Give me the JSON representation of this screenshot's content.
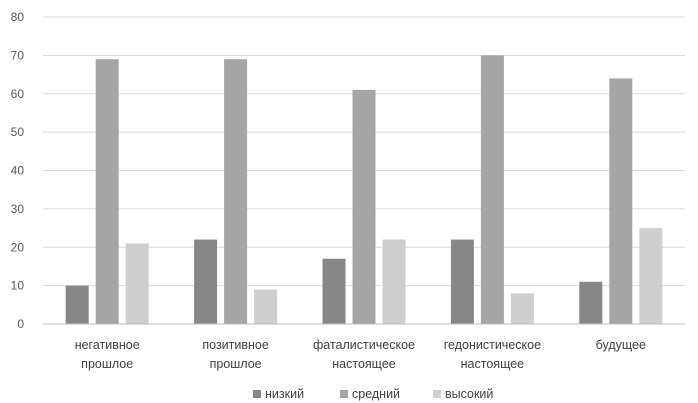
{
  "chart_data": {
    "type": "bar",
    "categories": [
      [
        "негативное",
        "прошлое"
      ],
      [
        "позитивное",
        "прошлое"
      ],
      [
        "фаталистическое",
        "настоящее"
      ],
      [
        "гедонистическое",
        "настоящее"
      ],
      [
        "будущее"
      ]
    ],
    "series": [
      {
        "name": "низкий",
        "color": "#878787",
        "values": [
          10,
          22,
          17,
          22,
          11
        ]
      },
      {
        "name": "средний",
        "color": "#a5a5a5",
        "values": [
          69,
          69,
          61,
          70,
          64
        ]
      },
      {
        "name": "высокий",
        "color": "#cfcfcf",
        "values": [
          21,
          9,
          22,
          8,
          25
        ]
      }
    ],
    "ylim": [
      0,
      80
    ],
    "yticks": [
      0,
      10,
      20,
      30,
      40,
      50,
      60,
      70,
      80
    ],
    "grid": true,
    "legend_position": "bottom"
  }
}
